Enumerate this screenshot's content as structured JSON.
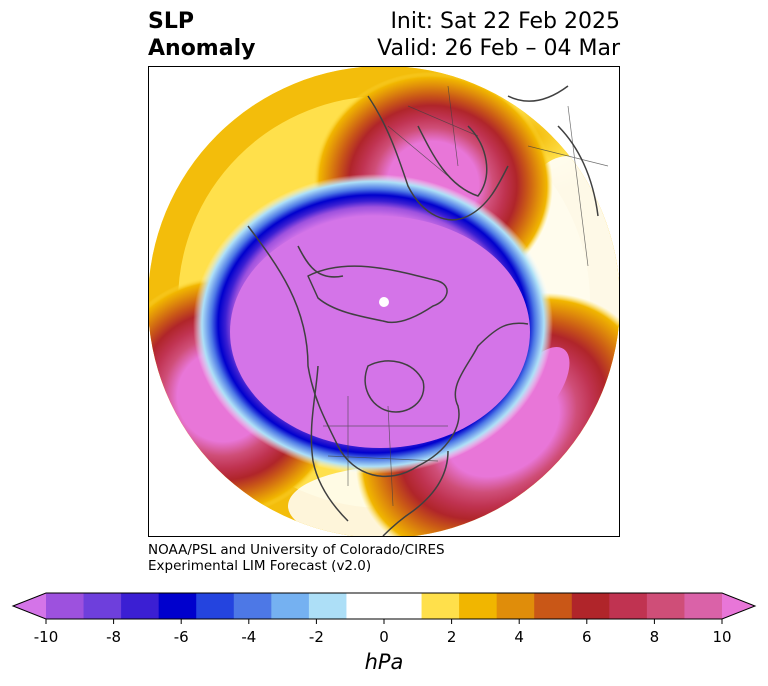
{
  "title": {
    "left_line1": "SLP",
    "left_line2": "Anomaly",
    "init": "Init: Sat 22 Feb 2025",
    "valid": "Valid: 26 Feb – 04 Mar"
  },
  "credit": {
    "line1": "NOAA/PSL and University of Colorado/CIRES",
    "line2": "Experimental LIM Forecast (v2.0)"
  },
  "map": {
    "projection": "north-polar-stereographic",
    "features": [
      "coastlines",
      "country-borders",
      "state-province-borders"
    ],
    "anomaly_centers": [
      {
        "region": "Arctic / North Pole",
        "sign": "negative",
        "approx_min_hpa": -10
      },
      {
        "region": "North Pacific (Gulf of Alaska)",
        "sign": "positive",
        "approx_max_hpa": 10
      },
      {
        "region": "North Atlantic",
        "sign": "positive",
        "approx_max_hpa": 10
      },
      {
        "region": "Scandinavia / Northern Europe",
        "sign": "positive",
        "approx_max_hpa": 10
      },
      {
        "region": "Western Russia",
        "sign": "positive",
        "approx_max_hpa": 3
      }
    ]
  },
  "colorbar": {
    "unit": "hPa",
    "extend": "both",
    "min": -10,
    "max": 10,
    "ticks": [
      "-10",
      "-8",
      "-6",
      "-4",
      "-2",
      "0",
      "2",
      "4",
      "6",
      "8",
      "10"
    ],
    "colors": [
      "#9d51de",
      "#6e3fdc",
      "#3b1fd3",
      "#0000cd",
      "#2444df",
      "#4d78e6",
      "#75b1f1",
      "#addff7",
      "#ffffff",
      "#ffffff",
      "#ffe04b",
      "#f1b600",
      "#e08d0a",
      "#c95717",
      "#b0252a",
      "#c03351",
      "#cf4e78",
      "#da62a8"
    ],
    "under_color": "#d474e8",
    "over_color": "#e876d8"
  }
}
